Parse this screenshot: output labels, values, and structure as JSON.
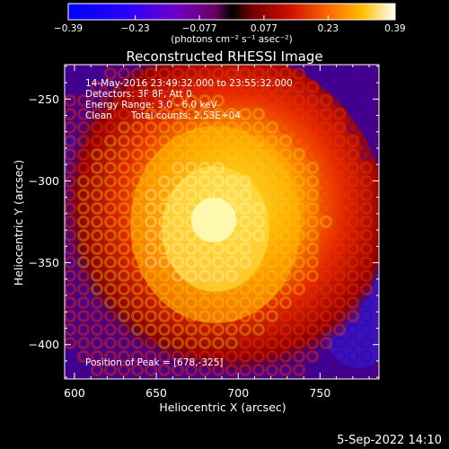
{
  "chart_data": {
    "type": "heatmap",
    "title": "Reconstructed RHESSI Image",
    "xlabel": "Heliocentric X (arcsec)",
    "ylabel": "Heliocentric Y (arcsec)",
    "xlim": [
      594,
      786
    ],
    "ylim": [
      -421,
      -229
    ],
    "x_ticks": [
      600,
      650,
      700,
      750
    ],
    "y_ticks": [
      -250,
      -300,
      -350,
      -400
    ],
    "colorbar": {
      "ticks": [
        "-0.39",
        "-0.23",
        "-0.077",
        "0.077",
        "0.23",
        "0.39"
      ],
      "range": [
        -0.39,
        0.39
      ],
      "unit_label": "(photons cm⁻² s⁻¹ asec⁻²)"
    },
    "annotations": {
      "time_range": "14-May-2016 23:49:32.000 to 23:55:32.000",
      "detectors": "Detectors: 3F 8F, Att 0",
      "energy_range": "Energy Range: 3.0 - 6.0 keV",
      "algorithm": "Clean",
      "total_counts": "Total counts: 2.53E+04",
      "peak": "Position of Peak = [678,-325]"
    },
    "peak": {
      "x": 678,
      "y": -325
    },
    "date_stamp": "5-Sep-2022 14:10"
  }
}
